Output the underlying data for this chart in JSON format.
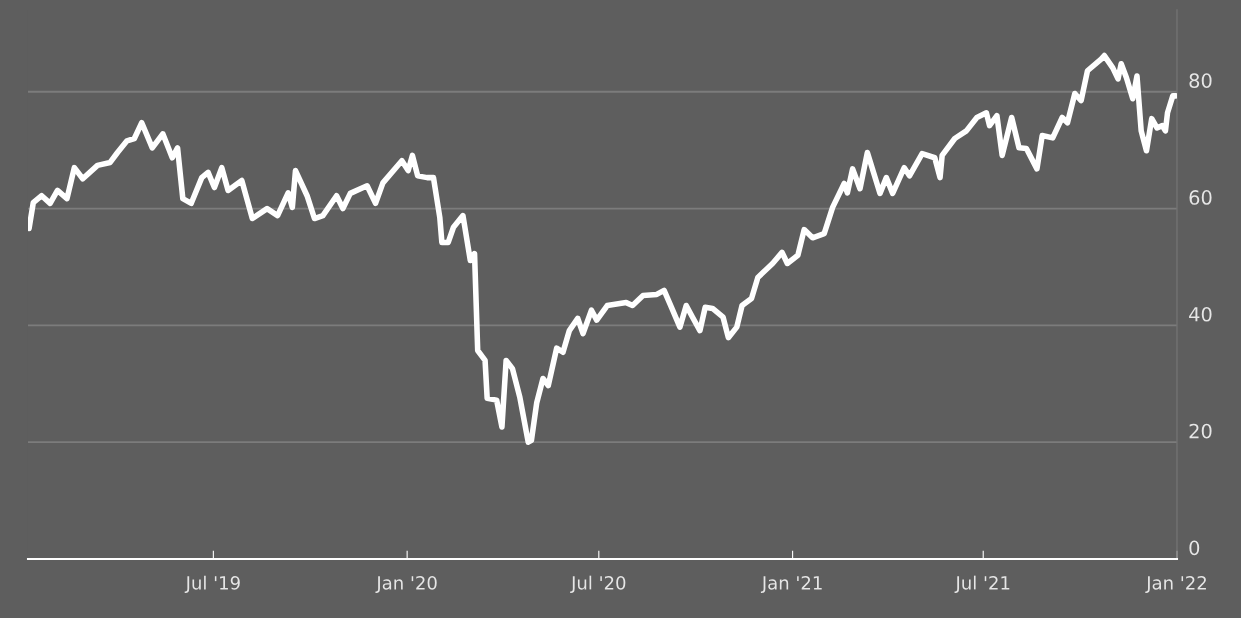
{
  "chart_data": {
    "type": "line",
    "x": [
      "2019-01-07",
      "2019-01-11",
      "2019-01-19",
      "2019-01-27",
      "2019-02-03",
      "2019-02-12",
      "2019-02-19",
      "2019-02-27",
      "2019-03-13",
      "2019-03-25",
      "2019-04-01",
      "2019-04-10",
      "2019-04-17",
      "2019-04-24",
      "2019-05-04",
      "2019-05-14",
      "2019-05-23",
      "2019-05-28",
      "2019-06-02",
      "2019-06-10",
      "2019-06-20",
      "2019-06-26",
      "2019-07-02",
      "2019-07-09",
      "2019-07-15",
      "2019-07-28",
      "2019-08-07",
      "2019-08-21",
      "2019-08-31",
      "2019-09-10",
      "2019-09-14",
      "2019-09-17",
      "2019-09-28",
      "2019-10-05",
      "2019-10-13",
      "2019-10-26",
      "2019-11-01",
      "2019-11-08",
      "2019-11-24",
      "2019-12-02",
      "2019-12-09",
      "2019-12-27",
      "2020-01-02",
      "2020-01-06",
      "2020-01-11",
      "2020-01-20",
      "2020-01-26",
      "2020-02-01",
      "2020-02-03",
      "2020-02-09",
      "2020-02-14",
      "2020-02-23",
      "2020-03-01",
      "2020-03-05",
      "2020-03-08",
      "2020-03-15",
      "2020-03-17",
      "2020-03-26",
      "2020-03-31",
      "2020-04-04",
      "2020-04-10",
      "2020-04-17",
      "2020-04-25",
      "2020-04-28",
      "2020-05-03",
      "2020-05-09",
      "2020-05-14",
      "2020-05-22",
      "2020-05-28",
      "2020-06-03",
      "2020-06-11",
      "2020-06-16",
      "2020-06-24",
      "2020-06-29",
      "2020-07-09",
      "2020-07-27",
      "2020-08-02",
      "2020-08-12",
      "2020-08-25",
      "2020-09-01",
      "2020-09-08",
      "2020-09-16",
      "2020-09-22",
      "2020-09-28",
      "2020-10-05",
      "2020-10-10",
      "2020-10-17",
      "2020-10-27",
      "2020-11-01",
      "2020-11-09",
      "2020-11-14",
      "2020-11-23",
      "2020-11-29",
      "2020-12-13",
      "2020-12-22",
      "2020-12-27",
      "2021-01-06",
      "2021-01-12",
      "2021-01-20",
      "2021-01-31",
      "2021-02-08",
      "2021-02-19",
      "2021-02-22",
      "2021-02-27",
      "2021-03-06",
      "2021-03-13",
      "2021-03-25",
      "2021-03-31",
      "2021-04-06",
      "2021-04-17",
      "2021-04-22",
      "2021-05-04",
      "2021-05-16",
      "2021-05-21",
      "2021-05-23",
      "2021-06-04",
      "2021-06-15",
      "2021-06-25",
      "2021-07-04",
      "2021-07-07",
      "2021-07-14",
      "2021-07-19",
      "2021-07-28",
      "2021-08-04",
      "2021-08-11",
      "2021-08-21",
      "2021-08-26",
      "2021-09-05",
      "2021-09-14",
      "2021-09-19",
      "2021-09-26",
      "2021-10-02",
      "2021-10-08",
      "2021-10-21",
      "2021-10-24",
      "2021-11-01",
      "2021-11-06",
      "2021-11-09",
      "2021-11-14",
      "2021-11-20",
      "2021-11-24",
      "2021-11-28",
      "2021-12-03",
      "2021-12-08",
      "2021-12-13",
      "2021-12-18",
      "2021-12-21",
      "2021-12-23",
      "2021-12-28",
      "2021-12-31"
    ],
    "series": [
      {
        "color": "#ffffff",
        "values": [
          56.6,
          61.0,
          62.2,
          60.9,
          63.1,
          61.7,
          67.0,
          65.1,
          67.4,
          67.9,
          69.6,
          71.6,
          72.0,
          74.7,
          70.4,
          72.8,
          68.7,
          70.4,
          61.7,
          60.9,
          65.3,
          66.2,
          63.6,
          67.0,
          63.1,
          64.8,
          58.3,
          60.0,
          58.8,
          62.7,
          60.2,
          66.5,
          62.2,
          58.3,
          58.8,
          62.2,
          60.0,
          62.6,
          63.9,
          60.9,
          64.4,
          68.2,
          66.5,
          69.1,
          65.6,
          65.3,
          65.3,
          58.5,
          54.2,
          54.2,
          56.8,
          58.8,
          51.1,
          52.3,
          35.7,
          34.0,
          27.5,
          27.2,
          22.6,
          34.0,
          32.6,
          27.7,
          20.0,
          20.3,
          26.7,
          30.9,
          29.7,
          36.1,
          35.4,
          39.1,
          41.2,
          38.6,
          42.6,
          40.9,
          43.4,
          43.9,
          43.4,
          45.1,
          45.3,
          46.0,
          43.1,
          39.7,
          43.4,
          41.4,
          39.1,
          43.1,
          42.9,
          41.4,
          37.9,
          39.7,
          43.4,
          44.6,
          48.2,
          50.6,
          52.5,
          50.6,
          52.0,
          56.4,
          55.0,
          55.7,
          60.2,
          64.3,
          62.7,
          66.8,
          63.4,
          69.6,
          62.6,
          65.3,
          62.6,
          67.0,
          65.6,
          69.4,
          68.7,
          65.3,
          69.1,
          72.0,
          73.3,
          75.6,
          76.4,
          74.2,
          75.9,
          69.1,
          75.6,
          70.4,
          70.3,
          66.8,
          72.5,
          72.1,
          75.6,
          74.7,
          79.7,
          78.5,
          83.6,
          85.6,
          86.2,
          84.1,
          82.2,
          84.8,
          82.4,
          78.8,
          82.7,
          73.3,
          69.9,
          75.4,
          73.8,
          74.2,
          73.3,
          76.4,
          79.3,
          79.3
        ]
      }
    ],
    "xlim": [
      "2019-01-06",
      "2022-01-01"
    ],
    "xticks": [
      {
        "value": "2019-07-01",
        "label": "Jul '19"
      },
      {
        "value": "2020-01-01",
        "label": "Jan '20"
      },
      {
        "value": "2020-07-01",
        "label": "Jul '20"
      },
      {
        "value": "2021-01-01",
        "label": "Jan '21"
      },
      {
        "value": "2021-07-01",
        "label": "Jul '21"
      },
      {
        "value": "2022-01-01",
        "label": "Jan '22"
      }
    ],
    "ylim": [
      0,
      94
    ],
    "yticks": [
      0,
      20,
      40,
      60,
      80
    ],
    "grid": "y",
    "marker": "none",
    "line_style": "solid"
  }
}
